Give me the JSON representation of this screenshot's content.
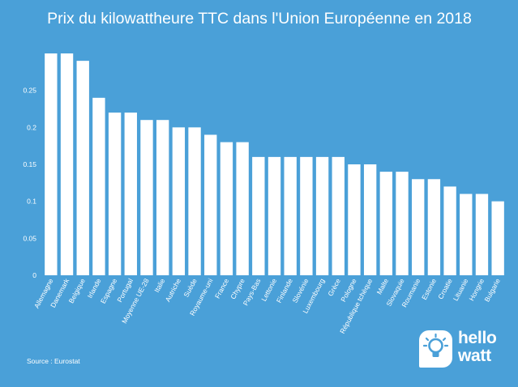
{
  "chart_data": {
    "type": "bar",
    "title": "Prix du kilowattheure TTC dans l'Union Européenne en 2018",
    "xlabel": "",
    "ylabel": "",
    "ylim": [
      0,
      0.3
    ],
    "yticks": [
      "0",
      "0.05",
      "0.1",
      "0.15",
      "0.2",
      "0.25"
    ],
    "categories": [
      "Allemagne",
      "Danemark",
      "Belgique",
      "Irlande",
      "Espagne",
      "Portugal",
      "Moyenne UE-28",
      "Italie",
      "Autriche",
      "Suède",
      "Royaume-uni",
      "France",
      "Chypre",
      "Pays-Bas",
      "Lettonie",
      "Finlande",
      "Slovénie",
      "Luxembourg",
      "Grèce",
      "Pologne",
      "République tchèque",
      "Malte",
      "Slovaquie",
      "Roumanie",
      "Estonie",
      "Croatie",
      "Lituanie",
      "Hongrie",
      "Bulgarie"
    ],
    "values": [
      0.3,
      0.3,
      0.29,
      0.24,
      0.22,
      0.22,
      0.21,
      0.21,
      0.2,
      0.2,
      0.19,
      0.18,
      0.18,
      0.16,
      0.16,
      0.16,
      0.16,
      0.16,
      0.16,
      0.15,
      0.15,
      0.14,
      0.14,
      0.13,
      0.13,
      0.12,
      0.11,
      0.11,
      0.1
    ],
    "grid": false,
    "legend": "none"
  },
  "footer": {
    "source": "Source : Eurostat"
  },
  "brand": {
    "line1": "hello",
    "line2": "watt"
  },
  "colors": {
    "background": "#4aa0d8",
    "bar": "#ffffff",
    "text": "#ffffff"
  }
}
